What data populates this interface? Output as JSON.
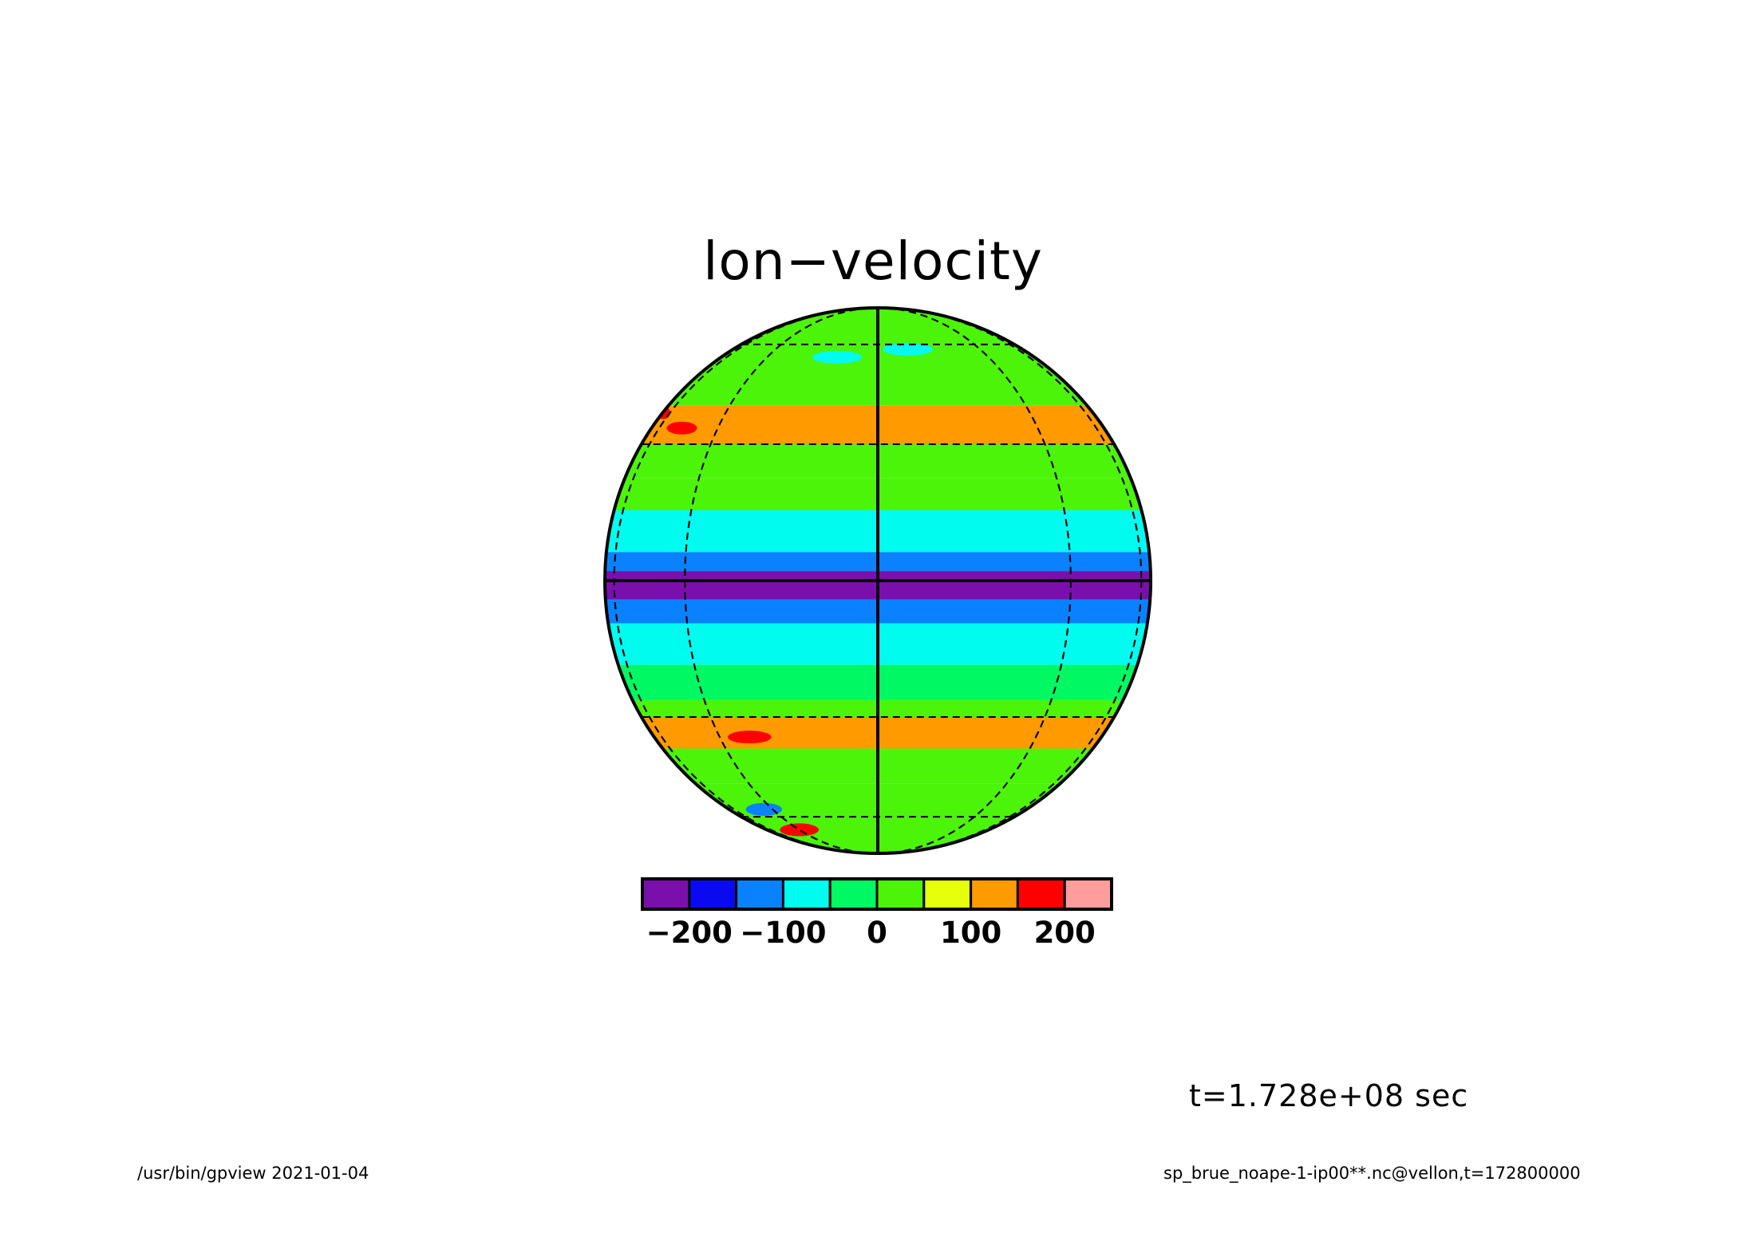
{
  "title": "lon−velocity",
  "time_label": "t=1.728e+08 sec",
  "footer": {
    "left": "/usr/bin/gpview  2021-01-04",
    "right": "sp_brue_noape-1-ip00**.nc@vellon,t=172800000"
  },
  "chart_data": {
    "type": "heatmap",
    "title": "lon−velocity",
    "projection": "orthographic globe",
    "variable": "lon-velocity",
    "grid": true,
    "legend_placement": "bottom",
    "colorbar": {
      "levels": [
        -250,
        -200,
        -150,
        -100,
        -50,
        0,
        50,
        100,
        150,
        200,
        250
      ],
      "colors": [
        "#7b0fae",
        "#0a0af0",
        "#0a82ff",
        "#00fbef",
        "#00f863",
        "#4cf40a",
        "#e6ff0a",
        "#ff9a00",
        "#ff0000",
        "#ff9c9c"
      ],
      "tick_labels": [
        "−200",
        "−100",
        "0",
        "100",
        "200"
      ],
      "tick_values": [
        -200,
        -100,
        0,
        100,
        200
      ]
    },
    "zonal_bands": [
      {
        "lat": [
          60,
          90
        ],
        "value": 20
      },
      {
        "lat": [
          40,
          60
        ],
        "value": 30
      },
      {
        "lat": [
          30,
          40
        ],
        "value": 110
      },
      {
        "lat": [
          22,
          30
        ],
        "value": 40
      },
      {
        "lat": [
          15,
          22
        ],
        "value": 10
      },
      {
        "lat": [
          6,
          15
        ],
        "value": -70
      },
      {
        "lat": [
          2,
          6
        ],
        "value": -140
      },
      {
        "lat": [
          -4,
          2
        ],
        "value": -215
      },
      {
        "lat": [
          -9,
          -4
        ],
        "value": -140
      },
      {
        "lat": [
          -18,
          -9
        ],
        "value": -70
      },
      {
        "lat": [
          -26,
          -18
        ],
        "value": -20
      },
      {
        "lat": [
          -30,
          -26
        ],
        "value": 40
      },
      {
        "lat": [
          -38,
          -30
        ],
        "value": 110
      },
      {
        "lat": [
          -48,
          -38
        ],
        "value": 40
      },
      {
        "lat": [
          -90,
          -48
        ],
        "value": 20
      }
    ],
    "anomalies": [
      {
        "lon": -60,
        "lat": 34,
        "value": 160
      },
      {
        "lon": -85,
        "lat": 38,
        "value": 160
      },
      {
        "lon": -35,
        "lat": -35,
        "value": 160
      },
      {
        "lon": 45,
        "lat": 0,
        "value": -230
      },
      {
        "lon": 75,
        "lat": 0,
        "value": -230
      },
      {
        "lon": -15,
        "lat": 55,
        "value": -70
      },
      {
        "lon": 12,
        "lat": 58,
        "value": -70
      },
      {
        "lon": -50,
        "lat": -57,
        "value": -120
      },
      {
        "lon": -45,
        "lat": -66,
        "value": 160
      }
    ]
  }
}
